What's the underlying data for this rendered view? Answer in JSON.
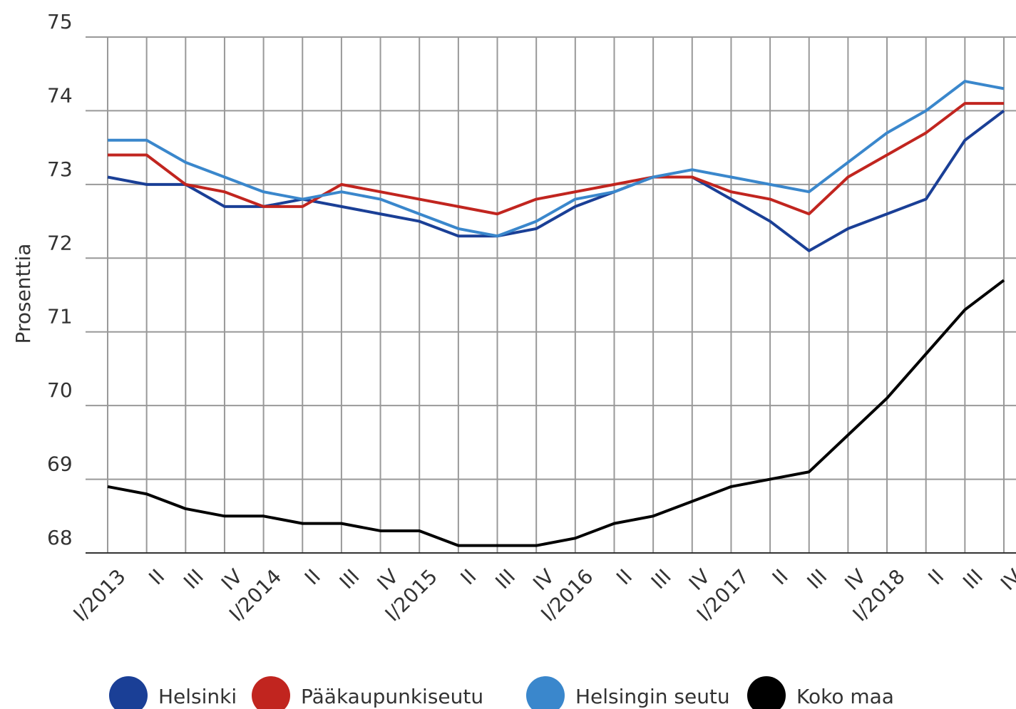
{
  "chart_data": {
    "type": "line",
    "y_label": "Prosenttia",
    "categories": [
      "I/2013",
      "II",
      "III",
      "IV",
      "I/2014",
      "II",
      "III",
      "IV",
      "I/2015",
      "II",
      "III",
      "IV",
      "I/2016",
      "II",
      "III",
      "IV",
      "I/2017",
      "II",
      "III",
      "IV",
      "I/2018",
      "II",
      "III",
      "IV"
    ],
    "series": [
      {
        "name": "Helsinki",
        "color": "#1a3f96",
        "values": [
          73.1,
          73.0,
          73.0,
          72.7,
          72.7,
          72.8,
          72.7,
          72.6,
          72.5,
          72.3,
          72.3,
          72.4,
          72.7,
          72.9,
          73.1,
          73.1,
          72.8,
          72.5,
          72.1,
          72.4,
          72.6,
          72.8,
          73.6,
          74.0
        ]
      },
      {
        "name": "Pääkaupunkiseutu",
        "color": "#c1251f",
        "values": [
          73.4,
          73.4,
          73.0,
          72.9,
          72.7,
          72.7,
          73.0,
          72.9,
          72.8,
          72.7,
          72.6,
          72.8,
          72.9,
          73.0,
          73.1,
          73.1,
          72.9,
          72.8,
          72.6,
          73.1,
          73.4,
          73.7,
          74.1,
          74.1
        ]
      },
      {
        "name": "Helsingin seutu",
        "color": "#3a87cc",
        "values": [
          73.6,
          73.6,
          73.3,
          73.1,
          72.9,
          72.8,
          72.9,
          72.8,
          72.6,
          72.4,
          72.3,
          72.5,
          72.8,
          72.9,
          73.1,
          73.2,
          73.1,
          73.0,
          72.9,
          73.3,
          73.7,
          74.0,
          74.4,
          74.3
        ]
      },
      {
        "name": "Koko maa",
        "color": "#000000",
        "values": [
          68.9,
          68.8,
          68.6,
          68.5,
          68.5,
          68.4,
          68.4,
          68.3,
          68.3,
          68.1,
          68.1,
          68.1,
          68.2,
          68.4,
          68.5,
          68.7,
          68.9,
          69.0,
          69.1,
          69.6,
          70.1,
          70.7,
          71.3,
          71.7
        ]
      }
    ],
    "ylim": [
      68,
      75
    ],
    "yticks": [
      68,
      69,
      70,
      71,
      72,
      73,
      74,
      75
    ],
    "grid": true
  }
}
